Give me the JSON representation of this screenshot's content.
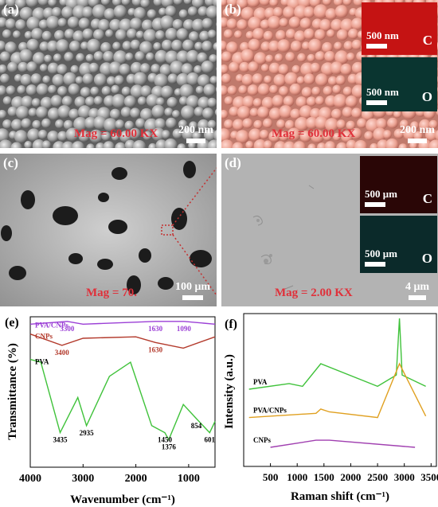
{
  "panels": {
    "a": {
      "label": "(a)",
      "mag": "Mag = 60.00 KX",
      "scale": "200 nm"
    },
    "b": {
      "label": "(b)",
      "mag": "Mag = 60.00 KX",
      "scale": "200 nm",
      "insets": [
        {
          "scale": "500 nm",
          "element": "C"
        },
        {
          "scale": "500 nm",
          "element": "O"
        }
      ]
    },
    "c": {
      "label": "(c)",
      "mag": "Mag = 70.",
      "scale": "100 μm"
    },
    "d": {
      "label": "(d)",
      "mag": "Mag = 2.00 KX",
      "scale": "4 μm",
      "insets": [
        {
          "scale": "500 μm",
          "element": "C"
        },
        {
          "scale": "500 μm",
          "element": "O"
        }
      ]
    }
  },
  "colors": {
    "pva": "#3fc23a",
    "cnps": "#b33a2c",
    "pva_cnps": "#9b3fd6",
    "cnps_raman": "#a03fb0",
    "pva_cnps_raman": "#e0a020",
    "mag_red": "#e0303a"
  },
  "chart_data": [
    {
      "panel": "(e)",
      "type": "line",
      "xlabel": "Wavenumber (cm⁻¹)",
      "ylabel": "Transmittance (%)",
      "xlim": [
        4000,
        500
      ],
      "xticks": [
        "4000",
        "3000",
        "2000",
        "1000"
      ],
      "series": [
        {
          "name": "PVA/CNPs",
          "x": [
            4000,
            3300,
            3000,
            1630,
            1090,
            500
          ],
          "y": [
            3,
            1,
            3,
            1,
            1,
            3
          ],
          "peaks": [
            "3300",
            "1630",
            "1090"
          ]
        },
        {
          "name": "CNPs",
          "x": [
            4000,
            3400,
            3000,
            2000,
            1630,
            1100,
            500
          ],
          "y": [
            10,
            18,
            13,
            12,
            16,
            20,
            12
          ],
          "peaks": [
            "3400",
            "1630"
          ]
        },
        {
          "name": "PVA",
          "x": [
            4000,
            3800,
            3435,
            3100,
            2935,
            2500,
            2100,
            1700,
            1450,
            1376,
            1100,
            854,
            601,
            500
          ],
          "y": [
            28,
            30,
            80,
            55,
            75,
            40,
            30,
            75,
            80,
            85,
            60,
            70,
            80,
            72
          ],
          "peaks": [
            "3435",
            "2935",
            "1450",
            "1376",
            "854",
            "601"
          ]
        }
      ]
    },
    {
      "panel": "(f)",
      "type": "line",
      "xlabel": "Raman shift (cm⁻¹)",
      "ylabel": "Intensity (a.u.)",
      "xlim": [
        0,
        3600
      ],
      "xticks": [
        "500",
        "1000",
        "1500",
        "2000",
        "2500",
        "3000",
        "3500"
      ],
      "series": [
        {
          "name": "PVA",
          "x": [
            100,
            850,
            1100,
            1440,
            2500,
            2850,
            2910,
            2960,
            3400
          ],
          "y": [
            50,
            54,
            52,
            68,
            52,
            60,
            100,
            60,
            52
          ]
        },
        {
          "name": "PVA/CNPs",
          "x": [
            100,
            1350,
            1440,
            1600,
            2500,
            2910,
            3400
          ],
          "y": [
            30,
            33,
            36,
            34,
            30,
            68,
            31
          ]
        },
        {
          "name": "CNPs",
          "x": [
            500,
            1350,
            1600,
            3200
          ],
          "y": [
            9,
            14,
            14,
            9
          ]
        }
      ]
    }
  ]
}
